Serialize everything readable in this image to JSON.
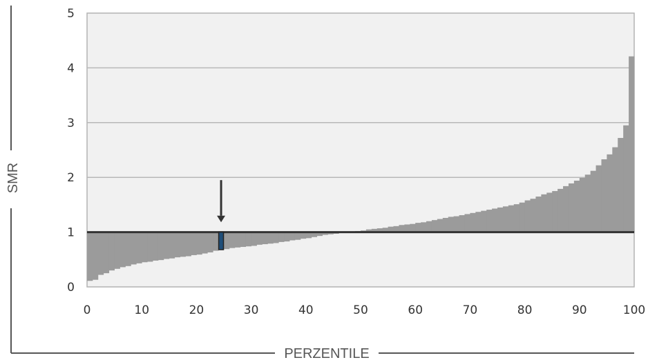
{
  "chart_data": {
    "type": "bar",
    "title": "",
    "xlabel": "PERZENTILE",
    "ylabel": "SMR",
    "xlim": [
      0,
      100
    ],
    "ylim": [
      0,
      5
    ],
    "xticks": [
      0,
      10,
      20,
      30,
      40,
      50,
      60,
      70,
      80,
      90,
      100
    ],
    "yticks": [
      0,
      1,
      2,
      3,
      4,
      5
    ],
    "grid": true,
    "reference_line": 1,
    "highlighted_percentile": 25,
    "highlighted_value": 0.68,
    "percentiles": [
      1,
      2,
      3,
      4,
      5,
      6,
      7,
      8,
      9,
      10,
      11,
      12,
      13,
      14,
      15,
      16,
      17,
      18,
      19,
      20,
      21,
      22,
      23,
      24,
      25,
      26,
      27,
      28,
      29,
      30,
      31,
      32,
      33,
      34,
      35,
      36,
      37,
      38,
      39,
      40,
      41,
      42,
      43,
      44,
      45,
      46,
      47,
      48,
      49,
      50,
      51,
      52,
      53,
      54,
      55,
      56,
      57,
      58,
      59,
      60,
      61,
      62,
      63,
      64,
      65,
      66,
      67,
      68,
      69,
      70,
      71,
      72,
      73,
      74,
      75,
      76,
      77,
      78,
      79,
      80,
      81,
      82,
      83,
      84,
      85,
      86,
      87,
      88,
      89,
      90,
      91,
      92,
      93,
      94,
      95,
      96,
      97,
      98,
      99,
      100
    ],
    "values": [
      0.11,
      0.13,
      0.22,
      0.25,
      0.3,
      0.33,
      0.36,
      0.38,
      0.41,
      0.43,
      0.45,
      0.46,
      0.48,
      0.49,
      0.51,
      0.52,
      0.54,
      0.55,
      0.56,
      0.58,
      0.59,
      0.61,
      0.63,
      0.66,
      0.68,
      0.69,
      0.71,
      0.72,
      0.73,
      0.74,
      0.75,
      0.77,
      0.78,
      0.79,
      0.8,
      0.82,
      0.83,
      0.85,
      0.86,
      0.88,
      0.89,
      0.91,
      0.93,
      0.95,
      0.96,
      0.97,
      0.99,
      1.0,
      1.01,
      1.02,
      1.03,
      1.05,
      1.06,
      1.07,
      1.08,
      1.1,
      1.11,
      1.13,
      1.14,
      1.15,
      1.17,
      1.18,
      1.2,
      1.22,
      1.24,
      1.26,
      1.28,
      1.29,
      1.31,
      1.33,
      1.35,
      1.37,
      1.39,
      1.41,
      1.43,
      1.45,
      1.47,
      1.49,
      1.51,
      1.54,
      1.58,
      1.61,
      1.65,
      1.69,
      1.72,
      1.75,
      1.79,
      1.84,
      1.89,
      1.94,
      1.99,
      2.05,
      2.12,
      2.22,
      2.33,
      2.42,
      2.55,
      2.72,
      2.95,
      4.21
    ]
  }
}
